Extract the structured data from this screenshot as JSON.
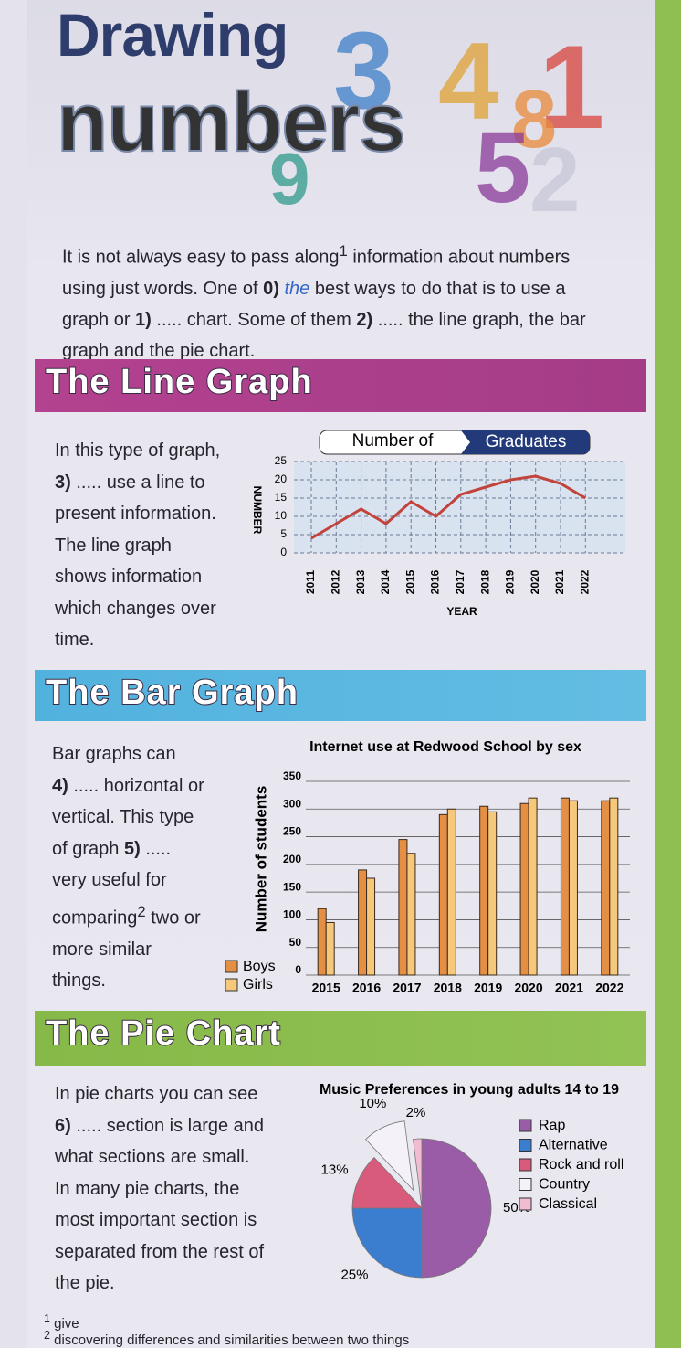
{
  "header": {
    "title": [
      "Drawing",
      "numbers"
    ],
    "decoration": [
      "3",
      "4",
      "1",
      "8",
      "5",
      "2",
      "9"
    ]
  },
  "intro": {
    "text": [
      "It is not always easy to pass along",
      "1",
      "information about numbers using just words. One of",
      "0)",
      "the",
      "best ways to do that is to use a graph or",
      "1)",
      "..... chart. Some of them",
      "2)",
      "..... the line graph, the bar graph and the pie chart."
    ]
  },
  "sections": [
    {
      "heading": "The Line Graph",
      "text": [
        "In this type of graph,",
        "3)",
        "..... use a line to",
        "present information.",
        "The line graph",
        "shows information",
        "which changes over",
        "time."
      ],
      "chart_data": {
        "type": "line",
        "title": [
          "Number of",
          "Graduates"
        ],
        "x_label": "YEAR",
        "y_label": "NUMBER",
        "categories": [
          "2011",
          "2012",
          "2013",
          "2014",
          "2015",
          "2016",
          "2017",
          "2018",
          "2019",
          "2020",
          "2021",
          "2022"
        ],
        "values": [
          4,
          8,
          12,
          8,
          14,
          10,
          16,
          18,
          20,
          21,
          19,
          15
        ],
        "color": "#c2433c",
        "ylim": [
          0,
          25
        ],
        "yticks": [
          0,
          5,
          10,
          15,
          20,
          25
        ],
        "grid": true
      }
    },
    {
      "heading": "The Bar Graph",
      "text": [
        "Bar graphs can",
        "4)",
        "..... horizontal or",
        "vertical. This type",
        "of graph",
        "5)",
        ".....",
        "very useful for",
        "comparing",
        "2",
        "two or",
        "more similar",
        "things."
      ],
      "chart_data": {
        "type": "bar",
        "title": "Internet use at Redwood School by sex",
        "y_label": "Number of students",
        "categories": [
          "2015",
          "2016",
          "2017",
          "2018",
          "2019",
          "2020",
          "2021",
          "2022"
        ],
        "series": [
          {
            "name": "Boys",
            "color": "#e58f45",
            "values": [
              120,
              190,
              245,
              290,
              305,
              310,
              320,
              315
            ]
          },
          {
            "name": "Girls",
            "color": "#f6c87c",
            "values": [
              95,
              175,
              220,
              300,
              295,
              320,
              315,
              320
            ]
          }
        ],
        "ylim": [
          0,
          350
        ],
        "yticks": [
          0,
          50,
          100,
          150,
          200,
          250,
          300,
          350
        ],
        "grid": true
      }
    },
    {
      "heading": "The Pie Chart",
      "text": [
        "In pie charts you can see",
        "6)",
        "..... section is large and",
        "what sections are small.",
        "In many pie charts, the",
        "most important section is",
        "separated from the rest of",
        "the pie."
      ],
      "chart_data": {
        "type": "pie",
        "title": "Music Preferences in young adults 14 to 19",
        "categories": [
          "Rap",
          "Alternative",
          "Rock and roll",
          "Country",
          "Classical"
        ],
        "values": [
          50,
          25,
          13,
          10,
          2
        ],
        "value_labels": [
          "50%",
          "25%",
          "13%",
          "10%",
          "2%"
        ],
        "colors": [
          "#9a5ca6",
          "#3b7ecf",
          "#d95b7c",
          "#f4f2f8",
          "#f1bcd0"
        ],
        "exploded": "Country"
      }
    }
  ],
  "footnotes": [
    {
      "number": "1",
      "text": "give"
    },
    {
      "number": "2",
      "text": "discovering differences and similarities between two things"
    }
  ]
}
